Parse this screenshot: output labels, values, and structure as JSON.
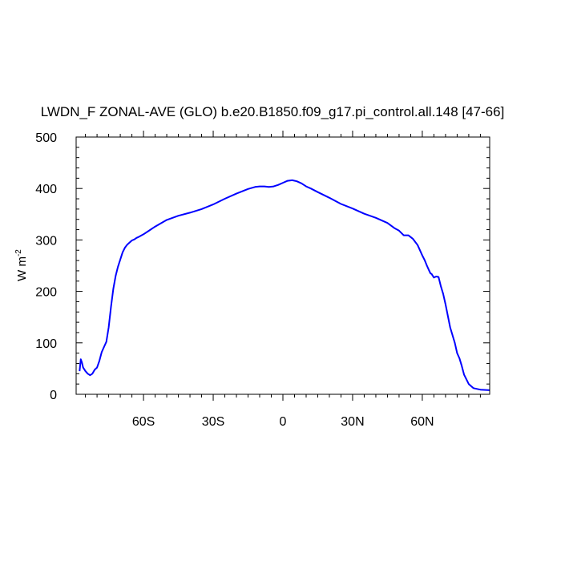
{
  "chart_data": {
    "type": "line",
    "title": "LWDN_F ZONAL-AVE (GLO) b.e20.B1850.f09_g17.pi_control.all.148 [47-66]",
    "ylabel": "W m",
    "ylabel_sup": "-2",
    "xlim": [
      -89,
      89
    ],
    "ylim": [
      0,
      500
    ],
    "xticks": [
      -60,
      -30,
      0,
      30,
      60
    ],
    "xtick_labels": [
      "60S",
      "30S",
      "0",
      "30N",
      "60N"
    ],
    "yticks": [
      0,
      100,
      200,
      300,
      400,
      500
    ],
    "ytick_labels": [
      "0",
      "100",
      "200",
      "300",
      "400",
      "500"
    ],
    "grid": false,
    "line_color": "#0000ff",
    "series": [
      {
        "x": [
          -87.5,
          -87,
          -86.5,
          -86,
          -85,
          -84,
          -83,
          -82,
          -81,
          -80,
          -79,
          -78,
          -77,
          -76,
          -75,
          -74,
          -73,
          -72,
          -71,
          -70,
          -69,
          -68,
          -67,
          -66,
          -65,
          -64,
          -63,
          -62,
          -60,
          -58,
          -55,
          -50,
          -45,
          -40,
          -35,
          -30,
          -25,
          -20,
          -15,
          -12,
          -10,
          -8,
          -6,
          -4,
          -2,
          0,
          2,
          4,
          6,
          8,
          10,
          12,
          15,
          20,
          25,
          30,
          35,
          40,
          45,
          48,
          50,
          52,
          54,
          56,
          58,
          60,
          61,
          62,
          63,
          63.5,
          64,
          65,
          66,
          67,
          68,
          69,
          70,
          72,
          74,
          75,
          76,
          77,
          78,
          80,
          82,
          85,
          89
        ],
        "y": [
          45,
          68,
          62,
          52,
          45,
          40,
          37,
          40,
          48,
          52,
          65,
          82,
          92,
          102,
          130,
          170,
          205,
          230,
          248,
          262,
          276,
          285,
          291,
          295,
          299,
          301,
          304,
          306,
          311,
          317,
          326,
          339,
          347,
          353,
          360,
          369,
          380,
          390,
          399,
          403,
          404,
          404,
          403,
          404,
          407,
          411,
          415,
          416,
          414,
          410,
          404,
          400,
          393,
          382,
          370,
          361,
          351,
          343,
          333,
          323,
          318,
          309,
          309,
          302,
          290,
          270,
          261,
          250,
          240,
          235,
          234,
          227,
          229,
          228,
          210,
          195,
          175,
          130,
          100,
          80,
          70,
          55,
          38,
          20,
          12,
          9,
          8
        ]
      }
    ]
  }
}
